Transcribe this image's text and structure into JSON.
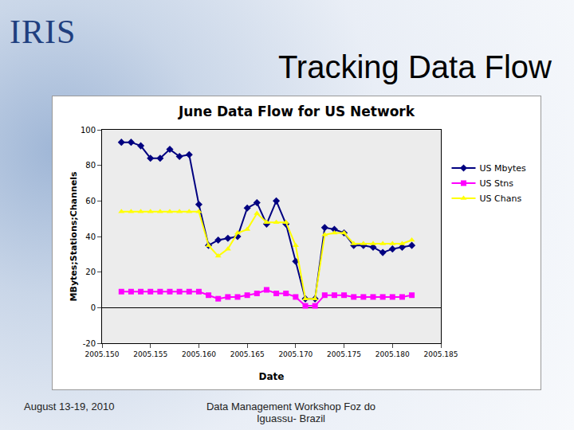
{
  "slide": {
    "logo": "IRIS",
    "heading": "Tracking Data Flow",
    "footer_left": "August 13-19, 2010",
    "footer_right": "Data Management Workshop Foz do Iguassu- Brazil"
  },
  "chart_data": {
    "type": "line",
    "title": "June Data Flow for US Network",
    "x_label": "Date",
    "y_label": "MBytes;Stations;Channels",
    "x": [
      2005.152,
      2005.153,
      2005.154,
      2005.155,
      2005.156,
      2005.157,
      2005.158,
      2005.159,
      2005.16,
      2005.161,
      2005.162,
      2005.163,
      2005.164,
      2005.165,
      2005.166,
      2005.167,
      2005.168,
      2005.169,
      2005.17,
      2005.171,
      2005.172,
      2005.173,
      2005.174,
      2005.175,
      2005.176,
      2005.177,
      2005.178,
      2005.179,
      2005.18,
      2005.181,
      2005.182
    ],
    "series": [
      {
        "name": "US Mbytes",
        "color": "#000080",
        "marker": "diamond",
        "values": [
          93,
          93,
          91,
          84,
          84,
          89,
          85,
          86,
          58,
          35,
          38,
          39,
          40,
          56,
          59,
          47,
          60,
          47,
          26,
          5,
          5,
          45,
          44,
          42,
          35,
          35,
          34,
          31,
          33,
          34,
          35
        ]
      },
      {
        "name": "US Stns",
        "color": "#ff00ff",
        "marker": "square",
        "values": [
          9,
          9,
          9,
          9,
          9,
          9,
          9,
          9,
          9,
          7,
          5,
          6,
          6,
          7,
          8,
          10,
          8,
          8,
          6,
          1,
          1,
          7,
          7,
          7,
          6,
          6,
          6,
          6,
          6,
          6,
          7
        ]
      },
      {
        "name": "US Chans",
        "color": "#ffff00",
        "marker": "triangle",
        "values": [
          54,
          54,
          54,
          54,
          54,
          54,
          54,
          54,
          54,
          35,
          29,
          33,
          42,
          44,
          53,
          48,
          48,
          48,
          35,
          5,
          5,
          41,
          42,
          42,
          36,
          36,
          36,
          36,
          36,
          36,
          38
        ]
      }
    ],
    "xlim": [
      2005.15,
      2005.185
    ],
    "xticks": [
      {
        "value": 2005.15,
        "label": "2005.150"
      },
      {
        "value": 2005.155,
        "label": "2005.155"
      },
      {
        "value": 2005.16,
        "label": "2005.160"
      },
      {
        "value": 2005.165,
        "label": "2005.165"
      },
      {
        "value": 2005.17,
        "label": "2005.170"
      },
      {
        "value": 2005.175,
        "label": "2005.175"
      },
      {
        "value": 2005.18,
        "label": "2005.180"
      },
      {
        "value": 2005.185,
        "label": "2005.185"
      }
    ],
    "ylim": [
      -20,
      100
    ],
    "yticks": [
      -20,
      0,
      20,
      40,
      60,
      80,
      100
    ],
    "grid": false,
    "legend": "right"
  }
}
